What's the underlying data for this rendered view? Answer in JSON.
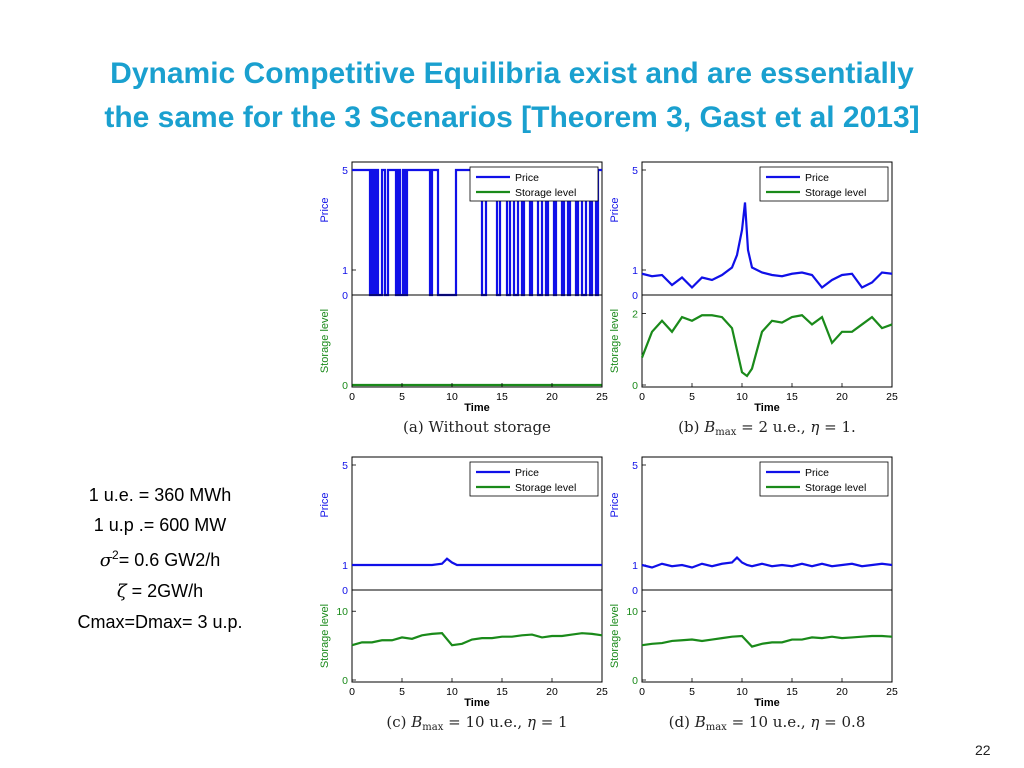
{
  "title": {
    "line1": "Dynamic Competitive Equilibria exist and are essentially",
    "line2": "the same for the 3 Scenarios [Theorem 3, Gast et al 2013]"
  },
  "notes": {
    "line1": "1 u.e. = 360 MWh",
    "line2": "1 u.p .= 600 MW",
    "sigma_symbol": "σ",
    "sigma_sup": "2",
    "sigma_rest": "= 0.6 GW2/h",
    "zeta_symbol": "ζ",
    "zeta_rest": " = 2GW/h",
    "line5": "Cmax=Dmax= 3 u.p."
  },
  "slide_number": "22",
  "colors": {
    "title": "#1aa0cf",
    "price": "#1010e8",
    "storage": "#1a8a1a"
  },
  "chart_data": [
    {
      "type": "line",
      "panel": "a",
      "caption": "(a) Without storage",
      "xlabel": "Time",
      "xlim": [
        0,
        25
      ],
      "xticks": [
        "0",
        "5",
        "10",
        "15",
        "20",
        "25"
      ],
      "legend": [
        "Price",
        "Storage level"
      ],
      "price": {
        "ylabel": "Price",
        "ylim": [
          0,
          5
        ],
        "yticks": [
          "0",
          "1",
          "5"
        ],
        "switches": [
          0.0,
          1.8,
          2.0,
          2.2,
          2.4,
          2.6,
          3.0,
          3.3,
          3.6,
          4.4,
          4.6,
          4.8,
          5.1,
          5.3,
          5.5,
          7.8,
          8.0,
          8.6,
          10.4,
          13.0,
          13.4,
          14.5,
          14.8,
          15.5,
          15.8,
          16.2,
          16.6,
          17.0,
          17.2,
          17.8,
          18.0,
          18.6,
          19.0,
          19.4,
          19.6,
          20.2,
          20.4,
          21.0,
          21.2,
          21.6,
          21.8,
          22.4,
          22.6,
          23.0,
          23.4,
          23.8,
          24.0,
          24.4,
          24.6
        ],
        "low": 0,
        "high": 5
      },
      "storage": {
        "ylabel": "Storage level",
        "ylim": [
          0,
          10
        ],
        "yticks": [
          "0"
        ],
        "level": 0
      }
    },
    {
      "type": "line",
      "panel": "b",
      "caption_prefix": "(b) ",
      "caption_var": "B",
      "caption_sub": "max",
      "caption_rest": " = 2 u.e., ",
      "caption_eta": "η",
      "caption_end": " = 1.",
      "xlabel": "Time",
      "xlim": [
        0,
        25
      ],
      "xticks": [
        "0",
        "5",
        "10",
        "15",
        "20",
        "25"
      ],
      "legend": [
        "Price",
        "Storage level"
      ],
      "price": {
        "ylabel": "Price",
        "ylim": [
          0,
          5
        ],
        "yticks": [
          "0",
          "1",
          "5"
        ],
        "x": [
          0,
          1,
          2,
          3,
          4,
          5,
          6,
          7,
          8,
          9,
          9.5,
          10,
          10.3,
          10.6,
          11,
          12,
          13,
          14,
          15,
          16,
          17,
          18,
          19,
          20,
          21,
          22,
          23,
          24,
          25
        ],
        "y": [
          0.85,
          0.75,
          0.8,
          0.4,
          0.7,
          0.3,
          0.7,
          0.6,
          0.8,
          1.1,
          1.6,
          2.6,
          3.7,
          1.8,
          1.1,
          0.9,
          0.8,
          0.75,
          0.85,
          0.9,
          0.8,
          0.3,
          0.6,
          0.8,
          0.85,
          0.3,
          0.5,
          0.9,
          0.85
        ]
      },
      "storage": {
        "ylabel": "Storage level",
        "ylim": [
          0,
          2.5
        ],
        "yticks": [
          "0",
          "2"
        ],
        "x": [
          0,
          1,
          2,
          3,
          4,
          5,
          6,
          7,
          8,
          9,
          9.5,
          10,
          10.5,
          11,
          12,
          13,
          14,
          15,
          16,
          17,
          18,
          19,
          20,
          21,
          22,
          23,
          24,
          25
        ],
        "y": [
          0.8,
          1.5,
          1.8,
          1.5,
          1.9,
          1.8,
          1.95,
          1.95,
          1.9,
          1.6,
          1.0,
          0.4,
          0.3,
          0.5,
          1.5,
          1.8,
          1.75,
          1.9,
          1.95,
          1.7,
          1.9,
          1.2,
          1.5,
          1.5,
          1.7,
          1.9,
          1.6,
          1.7
        ]
      }
    },
    {
      "type": "line",
      "panel": "c",
      "caption_prefix": "(c) ",
      "caption_var": "B",
      "caption_sub": "max",
      "caption_rest": " = 10 u.e., ",
      "caption_eta": "η",
      "caption_end": " = 1",
      "xlabel": "Time",
      "xlim": [
        0,
        25
      ],
      "xticks": [
        "0",
        "5",
        "10",
        "15",
        "20",
        "25"
      ],
      "legend": [
        "Price",
        "Storage level"
      ],
      "price": {
        "ylabel": "Price",
        "ylim": [
          0,
          5
        ],
        "yticks": [
          "0",
          "1",
          "5"
        ],
        "x": [
          0,
          4,
          8,
          9,
          9.5,
          10,
          10.5,
          11,
          15,
          20,
          25
        ],
        "y": [
          1.0,
          1.0,
          1.0,
          1.05,
          1.25,
          1.1,
          1.0,
          1.0,
          1.0,
          1.0,
          1.0
        ]
      },
      "storage": {
        "ylabel": "Storage level",
        "ylim": [
          0,
          13
        ],
        "yticks": [
          "0",
          "10"
        ],
        "x": [
          0,
          1,
          2,
          3,
          4,
          5,
          6,
          7,
          8,
          9,
          10,
          11,
          12,
          13,
          14,
          15,
          16,
          17,
          18,
          19,
          20,
          21,
          22,
          23,
          24,
          25
        ],
        "y": [
          5.2,
          5.6,
          5.6,
          5.9,
          5.9,
          6.3,
          6.1,
          6.6,
          6.8,
          6.9,
          5.2,
          5.4,
          6.0,
          6.2,
          6.2,
          6.4,
          6.4,
          6.6,
          6.7,
          6.3,
          6.5,
          6.5,
          6.7,
          6.9,
          6.8,
          6.6
        ]
      }
    },
    {
      "type": "line",
      "panel": "d",
      "caption_prefix": "(d) ",
      "caption_var": "B",
      "caption_sub": "max",
      "caption_rest": " = 10 u.e., ",
      "caption_eta": "η",
      "caption_end": " = 0.8",
      "xlabel": "Time",
      "xlim": [
        0,
        25
      ],
      "xticks": [
        "0",
        "5",
        "10",
        "15",
        "20",
        "25"
      ],
      "legend": [
        "Price",
        "Storage level"
      ],
      "price": {
        "ylabel": "Price",
        "ylim": [
          0,
          5
        ],
        "yticks": [
          "0",
          "1",
          "5"
        ],
        "x": [
          0,
          1,
          2,
          3,
          4,
          5,
          6,
          7,
          8,
          9,
          9.5,
          10,
          10.5,
          11,
          12,
          13,
          14,
          15,
          16,
          17,
          18,
          19,
          20,
          21,
          22,
          23,
          24,
          25
        ],
        "y": [
          1.0,
          0.9,
          1.05,
          0.95,
          1.0,
          0.9,
          1.05,
          0.95,
          1.05,
          1.1,
          1.3,
          1.1,
          1.0,
          0.95,
          1.05,
          0.95,
          1.0,
          0.95,
          1.05,
          0.95,
          1.05,
          0.95,
          1.0,
          1.05,
          0.95,
          1.0,
          1.05,
          1.0
        ]
      },
      "storage": {
        "ylabel": "Storage level",
        "ylim": [
          0,
          13
        ],
        "yticks": [
          "0",
          "10"
        ],
        "x": [
          0,
          1,
          2,
          3,
          4,
          5,
          6,
          7,
          8,
          9,
          10,
          11,
          12,
          13,
          14,
          15,
          16,
          17,
          18,
          19,
          20,
          21,
          22,
          23,
          24,
          25
        ],
        "y": [
          5.2,
          5.4,
          5.5,
          5.8,
          5.9,
          6.0,
          5.8,
          6.0,
          6.2,
          6.4,
          6.5,
          5.0,
          5.4,
          5.6,
          5.6,
          6.0,
          6.0,
          6.3,
          6.2,
          6.4,
          6.2,
          6.3,
          6.4,
          6.5,
          6.5,
          6.4
        ]
      }
    }
  ]
}
